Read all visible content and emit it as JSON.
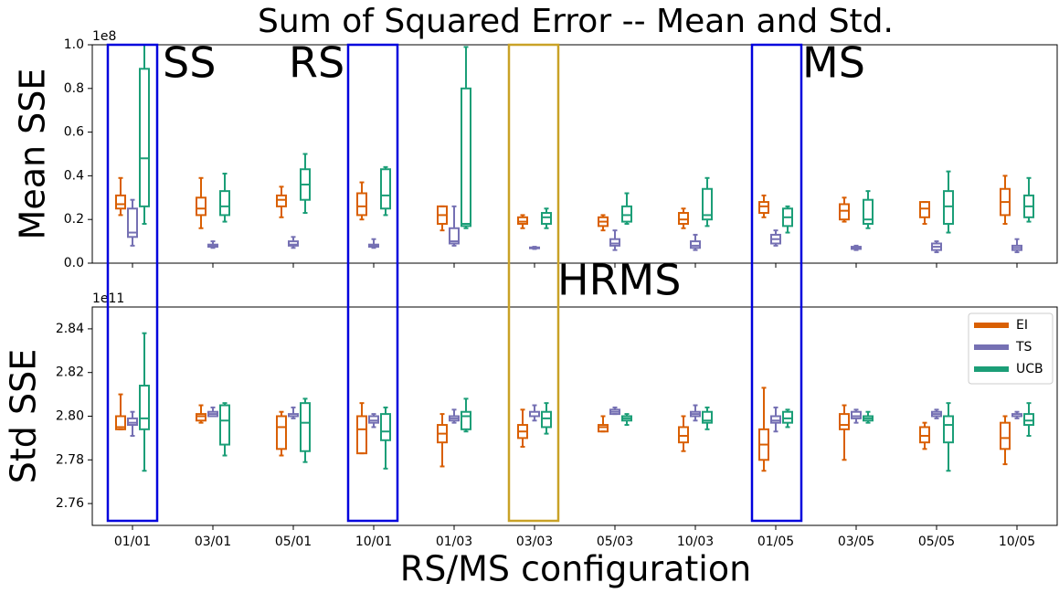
{
  "chart_data": [
    {
      "type": "box",
      "title": "Sum of Squared Error -- Mean and Std.",
      "ylabel": "Mean SSE",
      "y_offset_label": "1e8",
      "ylim": [
        0,
        1
      ],
      "yticks": [
        {
          "value": 0,
          "label": "0.0"
        },
        0.2,
        0.4,
        0.6,
        0.8,
        {
          "value": 1,
          "label": "1.0"
        }
      ],
      "annotations": [
        "SS",
        "RS",
        "MS"
      ],
      "legend": false,
      "series": [
        {
          "name": "EI",
          "color": "#d95f02",
          "values": [
            {
              "min": 0.22,
              "q1": 0.25,
              "median": 0.27,
              "q3": 0.31,
              "max": 0.39
            },
            {
              "min": 0.16,
              "q1": 0.22,
              "median": 0.25,
              "q3": 0.3,
              "max": 0.39
            },
            {
              "min": 0.21,
              "q1": 0.26,
              "median": 0.29,
              "q3": 0.31,
              "max": 0.35
            },
            {
              "min": 0.2,
              "q1": 0.22,
              "median": 0.26,
              "q3": 0.32,
              "max": 0.37
            },
            {
              "min": 0.15,
              "q1": 0.18,
              "median": 0.22,
              "q3": 0.26,
              "max": 0.26
            },
            {
              "min": 0.16,
              "q1": 0.18,
              "median": 0.19,
              "q3": 0.21,
              "max": 0.22
            },
            {
              "min": 0.15,
              "q1": 0.17,
              "median": 0.19,
              "q3": 0.21,
              "max": 0.22
            },
            {
              "min": 0.16,
              "q1": 0.18,
              "median": 0.2,
              "q3": 0.23,
              "max": 0.25
            },
            {
              "min": 0.21,
              "q1": 0.23,
              "median": 0.26,
              "q3": 0.28,
              "max": 0.31
            },
            {
              "min": 0.19,
              "q1": 0.2,
              "median": 0.24,
              "q3": 0.27,
              "max": 0.3
            },
            {
              "min": 0.18,
              "q1": 0.21,
              "median": 0.25,
              "q3": 0.28,
              "max": 0.28
            },
            {
              "min": 0.18,
              "q1": 0.22,
              "median": 0.28,
              "q3": 0.34,
              "max": 0.4
            }
          ]
        },
        {
          "name": "TS",
          "color": "#7570b3",
          "values": [
            {
              "min": 0.08,
              "q1": 0.12,
              "median": 0.14,
              "q3": 0.25,
              "max": 0.29
            },
            {
              "min": 0.07,
              "q1": 0.075,
              "median": 0.08,
              "q3": 0.085,
              "max": 0.1
            },
            {
              "min": 0.07,
              "q1": 0.08,
              "median": 0.085,
              "q3": 0.1,
              "max": 0.12
            },
            {
              "min": 0.07,
              "q1": 0.075,
              "median": 0.08,
              "q3": 0.085,
              "max": 0.11
            },
            {
              "min": 0.08,
              "q1": 0.09,
              "median": 0.1,
              "q3": 0.16,
              "max": 0.26
            },
            {
              "min": 0.065,
              "q1": 0.068,
              "median": 0.07,
              "q3": 0.072,
              "max": 0.075
            },
            {
              "min": 0.06,
              "q1": 0.08,
              "median": 0.09,
              "q3": 0.11,
              "max": 0.15
            },
            {
              "min": 0.06,
              "q1": 0.07,
              "median": 0.08,
              "q3": 0.1,
              "max": 0.13
            },
            {
              "min": 0.08,
              "q1": 0.09,
              "median": 0.11,
              "q3": 0.13,
              "max": 0.15
            },
            {
              "min": 0.06,
              "q1": 0.065,
              "median": 0.07,
              "q3": 0.075,
              "max": 0.08
            },
            {
              "min": 0.05,
              "q1": 0.06,
              "median": 0.075,
              "q3": 0.09,
              "max": 0.1
            },
            {
              "min": 0.05,
              "q1": 0.06,
              "median": 0.07,
              "q3": 0.08,
              "max": 0.11
            }
          ]
        },
        {
          "name": "UCB",
          "color": "#1b9e77",
          "values": [
            {
              "min": 0.18,
              "q1": 0.26,
              "median": 0.48,
              "q3": 0.89,
              "max": 1.0
            },
            {
              "min": 0.19,
              "q1": 0.22,
              "median": 0.26,
              "q3": 0.33,
              "max": 0.41
            },
            {
              "min": 0.23,
              "q1": 0.29,
              "median": 0.36,
              "q3": 0.43,
              "max": 0.5
            },
            {
              "min": 0.22,
              "q1": 0.25,
              "median": 0.31,
              "q3": 0.43,
              "max": 0.44
            },
            {
              "min": 0.16,
              "q1": 0.17,
              "median": 0.18,
              "q3": 0.8,
              "max": 0.99
            },
            {
              "min": 0.16,
              "q1": 0.18,
              "median": 0.21,
              "q3": 0.23,
              "max": 0.25
            },
            {
              "min": 0.18,
              "q1": 0.19,
              "median": 0.22,
              "q3": 0.26,
              "max": 0.32
            },
            {
              "min": 0.17,
              "q1": 0.2,
              "median": 0.22,
              "q3": 0.34,
              "max": 0.39
            },
            {
              "min": 0.14,
              "q1": 0.17,
              "median": 0.21,
              "q3": 0.25,
              "max": 0.26
            },
            {
              "min": 0.16,
              "q1": 0.18,
              "median": 0.2,
              "q3": 0.29,
              "max": 0.33
            },
            {
              "min": 0.14,
              "q1": 0.18,
              "median": 0.26,
              "q3": 0.33,
              "max": 0.42
            },
            {
              "min": 0.19,
              "q1": 0.21,
              "median": 0.26,
              "q3": 0.31,
              "max": 0.39
            }
          ]
        }
      ]
    },
    {
      "type": "box",
      "ylabel": "Std SSE",
      "y_offset_label": "1e11",
      "xlabel": "RS/MS configuration",
      "categories": [
        "01/01",
        "03/01",
        "05/01",
        "10/01",
        "01/03",
        "03/03",
        "05/03",
        "10/03",
        "01/05",
        "03/05",
        "05/05",
        "10/05"
      ],
      "ylim": [
        2.75,
        2.85
      ],
      "yticks": [
        2.76,
        2.78,
        {
          "value": 2.8,
          "label": "2.80"
        },
        2.82,
        2.84
      ],
      "annotations": [
        "HRMS"
      ],
      "legend": "upper right",
      "series": [
        {
          "name": "EI",
          "color": "#d95f02",
          "values": [
            {
              "min": 2.794,
              "q1": 2.794,
              "median": 2.795,
              "q3": 2.8,
              "max": 2.81
            },
            {
              "min": 2.797,
              "q1": 2.798,
              "median": 2.8,
              "q3": 2.801,
              "max": 2.805
            },
            {
              "min": 2.782,
              "q1": 2.785,
              "median": 2.795,
              "q3": 2.8,
              "max": 2.802
            },
            {
              "min": 2.783,
              "q1": 2.783,
              "median": 2.794,
              "q3": 2.8,
              "max": 2.806
            },
            {
              "min": 2.777,
              "q1": 2.788,
              "median": 2.792,
              "q3": 2.796,
              "max": 2.801
            },
            {
              "min": 2.786,
              "q1": 2.79,
              "median": 2.793,
              "q3": 2.796,
              "max": 2.803
            },
            {
              "min": 2.793,
              "q1": 2.793,
              "median": 2.795,
              "q3": 2.796,
              "max": 2.8
            },
            {
              "min": 2.784,
              "q1": 2.788,
              "median": 2.791,
              "q3": 2.795,
              "max": 2.8
            },
            {
              "min": 2.775,
              "q1": 2.78,
              "median": 2.787,
              "q3": 2.794,
              "max": 2.813
            },
            {
              "min": 2.78,
              "q1": 2.794,
              "median": 2.796,
              "q3": 2.801,
              "max": 2.805
            },
            {
              "min": 2.785,
              "q1": 2.788,
              "median": 2.791,
              "q3": 2.795,
              "max": 2.797
            },
            {
              "min": 2.778,
              "q1": 2.785,
              "median": 2.79,
              "q3": 2.797,
              "max": 2.8
            }
          ]
        },
        {
          "name": "TS",
          "color": "#7570b3",
          "values": [
            {
              "min": 2.791,
              "q1": 2.796,
              "median": 2.797,
              "q3": 2.799,
              "max": 2.802
            },
            {
              "min": 2.8,
              "q1": 2.8,
              "median": 2.801,
              "q3": 2.802,
              "max": 2.804
            },
            {
              "min": 2.799,
              "q1": 2.8,
              "median": 2.8,
              "q3": 2.801,
              "max": 2.804
            },
            {
              "min": 2.795,
              "q1": 2.797,
              "median": 2.798,
              "q3": 2.8,
              "max": 2.801
            },
            {
              "min": 2.797,
              "q1": 2.798,
              "median": 2.799,
              "q3": 2.8,
              "max": 2.803
            },
            {
              "min": 2.798,
              "q1": 2.8,
              "median": 2.8,
              "q3": 2.802,
              "max": 2.805
            },
            {
              "min": 2.801,
              "q1": 2.801,
              "median": 2.802,
              "q3": 2.803,
              "max": 2.804
            },
            {
              "min": 2.798,
              "q1": 2.8,
              "median": 2.801,
              "q3": 2.802,
              "max": 2.805
            },
            {
              "min": 2.793,
              "q1": 2.797,
              "median": 2.798,
              "q3": 2.8,
              "max": 2.804
            },
            {
              "min": 2.797,
              "q1": 2.799,
              "median": 2.8,
              "q3": 2.802,
              "max": 2.803
            },
            {
              "min": 2.799,
              "q1": 2.8,
              "median": 2.801,
              "q3": 2.802,
              "max": 2.803
            },
            {
              "min": 2.799,
              "q1": 2.8,
              "median": 2.8,
              "q3": 2.801,
              "max": 2.802
            }
          ]
        },
        {
          "name": "UCB",
          "color": "#1b9e77",
          "values": [
            {
              "min": 2.775,
              "q1": 2.794,
              "median": 2.799,
              "q3": 2.814,
              "max": 2.838
            },
            {
              "min": 2.782,
              "q1": 2.787,
              "median": 2.798,
              "q3": 2.805,
              "max": 2.806
            },
            {
              "min": 2.779,
              "q1": 2.784,
              "median": 2.797,
              "q3": 2.806,
              "max": 2.808
            },
            {
              "min": 2.776,
              "q1": 2.789,
              "median": 2.793,
              "q3": 2.801,
              "max": 2.804
            },
            {
              "min": 2.793,
              "q1": 2.794,
              "median": 2.8,
              "q3": 2.802,
              "max": 2.808
            },
            {
              "min": 2.792,
              "q1": 2.795,
              "median": 2.799,
              "q3": 2.802,
              "max": 2.806
            },
            {
              "min": 2.796,
              "q1": 2.798,
              "median": 2.799,
              "q3": 2.8,
              "max": 2.801
            },
            {
              "min": 2.794,
              "q1": 2.797,
              "median": 2.798,
              "q3": 2.802,
              "max": 2.804
            },
            {
              "min": 2.795,
              "q1": 2.797,
              "median": 2.799,
              "q3": 2.802,
              "max": 2.803
            },
            {
              "min": 2.797,
              "q1": 2.798,
              "median": 2.799,
              "q3": 2.8,
              "max": 2.802
            },
            {
              "min": 2.775,
              "q1": 2.788,
              "median": 2.796,
              "q3": 2.8,
              "max": 2.806
            },
            {
              "min": 2.791,
              "q1": 2.796,
              "median": 2.798,
              "q3": 2.801,
              "max": 2.806
            }
          ]
        }
      ]
    }
  ]
}
